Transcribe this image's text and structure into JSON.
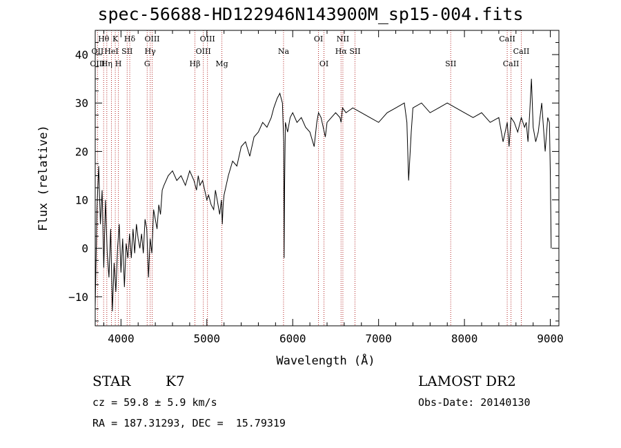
{
  "chart_data": {
    "type": "line",
    "title": "spec-56688-HD122946N143900M_sp15-004.fits",
    "xlabel": "Wavelength (Å)",
    "ylabel": "Flux (relative)",
    "xlim": [
      3700,
      9100
    ],
    "ylim": [
      -16,
      45
    ],
    "x_ticks": [
      4000,
      5000,
      6000,
      7000,
      8000,
      9000
    ],
    "y_ticks": [
      -10,
      0,
      10,
      20,
      30,
      40
    ],
    "grid": false,
    "series": [
      {
        "x": [
          3700,
          3720,
          3740,
          3760,
          3780,
          3800,
          3820,
          3840,
          3860,
          3880,
          3900,
          3920,
          3940,
          3960,
          3980,
          4000,
          4020,
          4040,
          4060,
          4080,
          4100,
          4120,
          4140,
          4160,
          4180,
          4200,
          4220,
          4240,
          4260,
          4280,
          4300,
          4320,
          4340,
          4360,
          4380,
          4400,
          4420,
          4440,
          4460,
          4480,
          4500,
          4550,
          4600,
          4650,
          4700,
          4750,
          4800,
          4850,
          4880,
          4900,
          4920,
          4950,
          5000,
          5020,
          5050,
          5080,
          5100,
          5130,
          5150,
          5170,
          5180,
          5190,
          5200,
          5250,
          5300,
          5350,
          5400,
          5450,
          5500,
          5550,
          5600,
          5650,
          5700,
          5750,
          5780,
          5800,
          5820,
          5850,
          5880,
          5895,
          5900,
          5905,
          5915,
          5940,
          5970,
          6000,
          6050,
          6100,
          6150,
          6200,
          6250,
          6280,
          6300,
          6330,
          6380,
          6400,
          6450,
          6500,
          6550,
          6563,
          6580,
          6620,
          6700,
          6800,
          6900,
          7000,
          7100,
          7200,
          7300,
          7330,
          7350,
          7380,
          7400,
          7500,
          7600,
          7700,
          7800,
          7900,
          8000,
          8100,
          8200,
          8300,
          8400,
          8450,
          8498,
          8520,
          8542,
          8580,
          8620,
          8662,
          8700,
          8720,
          8740,
          8760,
          8780,
          8800,
          8830,
          8860,
          8900,
          8940,
          8970,
          8990,
          9000,
          9010
        ],
        "values": [
          -12,
          8,
          17,
          5,
          12,
          -4,
          10,
          -1,
          -6,
          4,
          -13,
          -3,
          -9,
          0,
          5,
          -5,
          2,
          -8,
          1,
          -2,
          3,
          -2,
          4,
          -1,
          5,
          2,
          0,
          3,
          -1,
          6,
          4,
          -6,
          2,
          -1,
          8,
          6,
          4,
          9,
          7,
          12,
          13,
          15,
          16,
          14,
          15,
          13,
          16,
          14,
          12,
          15,
          13,
          14,
          10,
          11,
          9,
          8,
          12,
          9,
          7,
          10,
          5,
          9,
          11,
          15,
          18,
          17,
          21,
          22,
          19,
          23,
          24,
          26,
          25,
          27,
          29,
          30,
          31,
          32,
          30,
          22,
          -2,
          12,
          26,
          24,
          27,
          28,
          26,
          27,
          25,
          24,
          21,
          26,
          28,
          27,
          23,
          26,
          27,
          28,
          27,
          26,
          29,
          28,
          29,
          28,
          27,
          26,
          28,
          29,
          30,
          26,
          14,
          24,
          29,
          30,
          28,
          29,
          30,
          29,
          28,
          27,
          28,
          26,
          27,
          22,
          26,
          21,
          27,
          26,
          24,
          27,
          25,
          26,
          22,
          28,
          35,
          25,
          22,
          24,
          30,
          20,
          27,
          26,
          15,
          0
        ]
      }
    ],
    "line_labels": [
      {
        "label": "Hθ",
        "x": 3798,
        "row": 0
      },
      {
        "label": "K",
        "x": 3934,
        "row": 0
      },
      {
        "label": "Hδ",
        "x": 4102,
        "row": 0
      },
      {
        "label": "OIII",
        "x": 4363,
        "row": 0
      },
      {
        "label": "OIII",
        "x": 5007,
        "row": 0
      },
      {
        "label": "OI",
        "x": 6300,
        "row": 0
      },
      {
        "label": "NII",
        "x": 6584,
        "row": 0
      },
      {
        "label": "CaII",
        "x": 8498,
        "row": 0
      },
      {
        "label": "OII",
        "x": 3727,
        "row": 1
      },
      {
        "label": "HeI",
        "x": 3889,
        "row": 1
      },
      {
        "label": "SII",
        "x": 4072,
        "row": 1
      },
      {
        "label": "Hγ",
        "x": 4340,
        "row": 1
      },
      {
        "label": "OIII",
        "x": 4959,
        "row": 1
      },
      {
        "label": "Na",
        "x": 5893,
        "row": 1
      },
      {
        "label": "Hα",
        "x": 6563,
        "row": 1
      },
      {
        "label": "SII",
        "x": 6725,
        "row": 1
      },
      {
        "label": "CaII",
        "x": 8662,
        "row": 1
      },
      {
        "label": "OIII",
        "x": 3727,
        "row": 2
      },
      {
        "label": "Hη",
        "x": 3835,
        "row": 2
      },
      {
        "label": "H",
        "x": 3970,
        "row": 2
      },
      {
        "label": "G",
        "x": 4305,
        "row": 2
      },
      {
        "label": "Hβ",
        "x": 4861,
        "row": 2
      },
      {
        "label": "Mg",
        "x": 5175,
        "row": 2
      },
      {
        "label": "OI",
        "x": 6364,
        "row": 2
      },
      {
        "label": "SII",
        "x": 7840,
        "row": 2
      },
      {
        "label": "CaII",
        "x": 8542,
        "row": 2
      }
    ],
    "line_color": "#000000",
    "marker_color": "#b22222"
  },
  "info": {
    "object_type": "STAR",
    "subclass": "K7",
    "survey": "LAMOST DR2",
    "redshift_line": "cz = 59.8 ± 5.9 km/s",
    "obs_date_line": "Obs-Date: 20140130",
    "coords_line": "RA = 187.31293, DEC =  15.79319"
  }
}
